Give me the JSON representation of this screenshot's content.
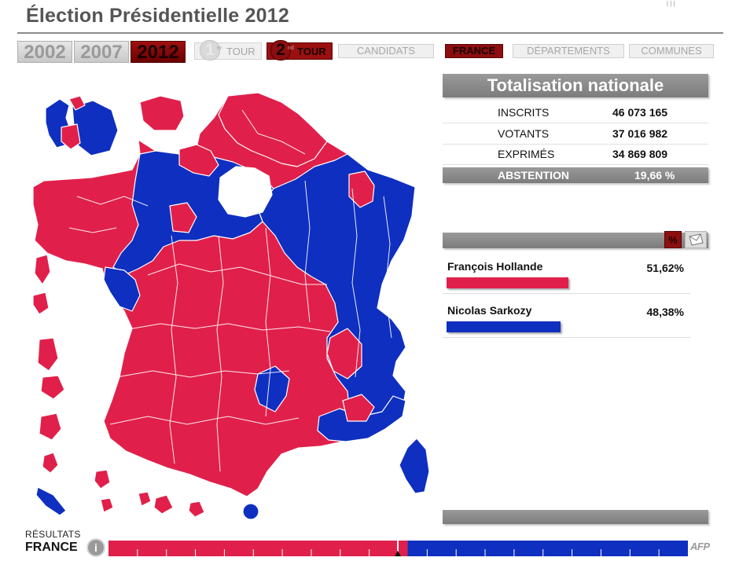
{
  "title": "Élection Présidentielle 2012",
  "colors": {
    "hollande": "#e0204a",
    "sarkozy": "#0f2fc0",
    "active": "#8c0e0e",
    "panel": "#8a8a8a"
  },
  "years": [
    {
      "label": "2002",
      "active": false
    },
    {
      "label": "2007",
      "active": false
    },
    {
      "label": "2012",
      "active": true
    }
  ],
  "tours": {
    "first": {
      "num": "1",
      "sup": "er",
      "label": "TOUR"
    },
    "second": {
      "num": "2",
      "sup": "nd",
      "label": "TOUR"
    }
  },
  "nav": {
    "candidats": "CANDIDATS",
    "france": "FRANCE",
    "departements": "DÉPARTEMENTS",
    "communes": "COMMUNES"
  },
  "totalisation": {
    "header": "Totalisation nationale",
    "rows": [
      {
        "label": "INSCRITS",
        "value": "46 073 165"
      },
      {
        "label": "VOTANTS",
        "value": "37 016 982"
      },
      {
        "label": "EXPRIMÉS",
        "value": "34 869 809"
      }
    ],
    "abstention": {
      "label": "ABSTENTION",
      "value": "19,66 %"
    }
  },
  "buttons": {
    "percent": "%",
    "vote_icon": "ballot-envelope-icon"
  },
  "candidates": [
    {
      "name": "François Hollande",
      "pct": "51,62%",
      "share": 0.5162,
      "color": "#e0204a"
    },
    {
      "name": "Nicolas Sarkozy",
      "pct": "48,38%",
      "share": 0.4838,
      "color": "#0f2fc0"
    }
  ],
  "footer": {
    "label": "RÉSULTATS",
    "scope": "FRANCE",
    "info_icon": "i",
    "logo": "AFP"
  },
  "map": {
    "majority_color_left": "red",
    "majority_color_right": "blue"
  }
}
